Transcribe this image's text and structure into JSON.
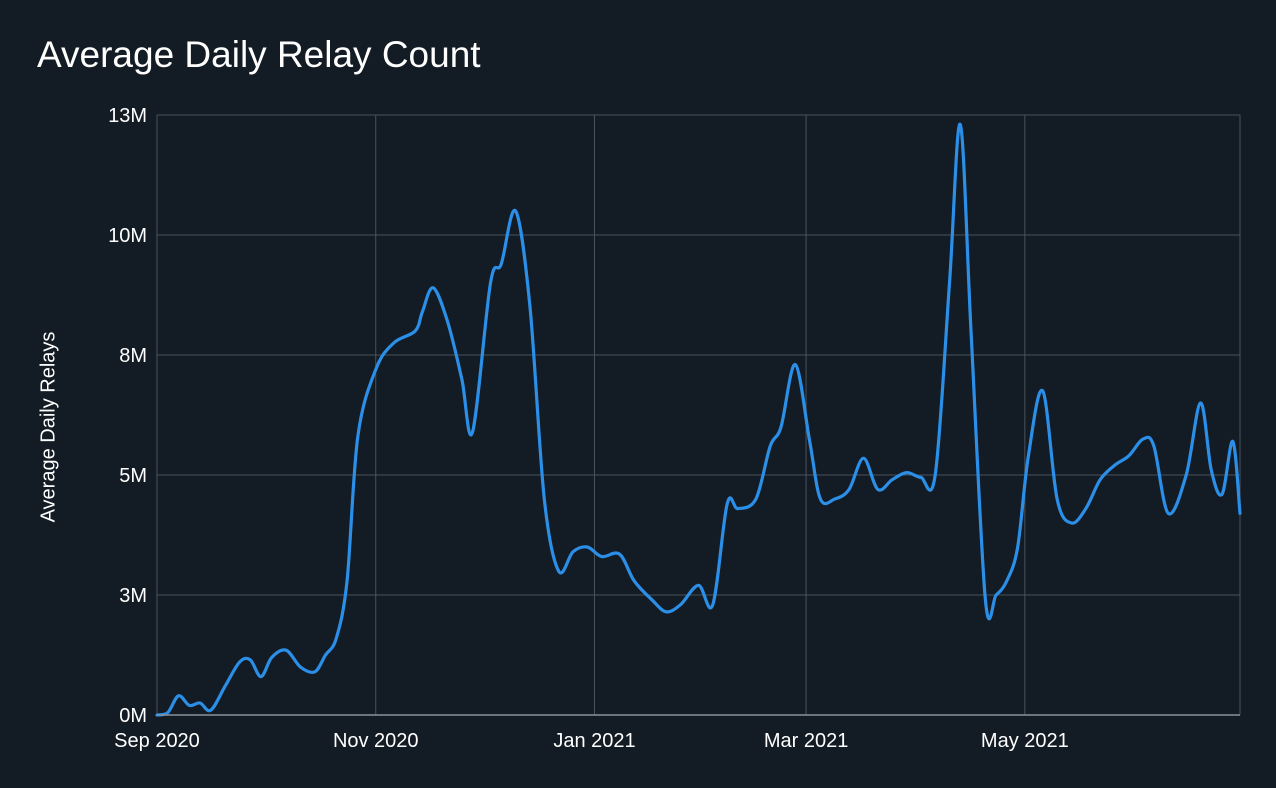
{
  "chart_data": {
    "type": "line",
    "title": "Average Daily Relay Count",
    "ylabel": "Average Daily Relays",
    "xlabel": "",
    "x_ticks": [
      "Sep 2020",
      "Nov 2020",
      "Jan 2021",
      "Mar 2021",
      "May 2021"
    ],
    "y_ticks": [
      "0M",
      "3M",
      "5M",
      "8M",
      "10M",
      "13M"
    ],
    "y_tick_values": [
      0,
      2.5,
      5,
      7.5,
      10,
      12.5
    ],
    "ylim": [
      0,
      12.5
    ],
    "xlim": [
      "2020-09-01",
      "2021-06-30"
    ],
    "grid": true,
    "line_color": "#2b8fe8",
    "series": [
      {
        "values": [
          [
            "2020-09-01",
            0.0
          ],
          [
            "2020-09-04",
            0.05
          ],
          [
            "2020-09-07",
            0.4
          ],
          [
            "2020-09-10",
            0.2
          ],
          [
            "2020-09-13",
            0.25
          ],
          [
            "2020-09-16",
            0.1
          ],
          [
            "2020-09-20",
            0.6
          ],
          [
            "2020-09-24",
            1.1
          ],
          [
            "2020-09-27",
            1.15
          ],
          [
            "2020-09-30",
            0.8
          ],
          [
            "2020-10-03",
            1.2
          ],
          [
            "2020-10-07",
            1.35
          ],
          [
            "2020-10-11",
            1.0
          ],
          [
            "2020-10-15",
            0.9
          ],
          [
            "2020-10-18",
            1.25
          ],
          [
            "2020-10-21",
            1.6
          ],
          [
            "2020-10-24",
            2.8
          ],
          [
            "2020-10-27",
            5.8
          ],
          [
            "2020-11-01",
            7.2
          ],
          [
            "2020-11-06",
            7.75
          ],
          [
            "2020-11-12",
            8.0
          ],
          [
            "2020-11-14",
            8.4
          ],
          [
            "2020-11-17",
            8.9
          ],
          [
            "2020-11-21",
            8.2
          ],
          [
            "2020-11-25",
            7.0
          ],
          [
            "2020-11-28",
            5.9
          ],
          [
            "2020-12-03",
            9.0
          ],
          [
            "2020-12-06",
            9.4
          ],
          [
            "2020-12-10",
            10.5
          ],
          [
            "2020-12-14",
            8.5
          ],
          [
            "2020-12-18",
            4.5
          ],
          [
            "2020-12-22",
            3.0
          ],
          [
            "2020-12-26",
            3.4
          ],
          [
            "2020-12-30",
            3.5
          ],
          [
            "2021-01-03",
            3.3
          ],
          [
            "2021-01-08",
            3.35
          ],
          [
            "2021-01-12",
            2.8
          ],
          [
            "2021-01-17",
            2.4
          ],
          [
            "2021-01-21",
            2.15
          ],
          [
            "2021-01-25",
            2.3
          ],
          [
            "2021-01-30",
            2.7
          ],
          [
            "2021-02-03",
            2.3
          ],
          [
            "2021-02-07",
            4.4
          ],
          [
            "2021-02-10",
            4.3
          ],
          [
            "2021-02-15",
            4.5
          ],
          [
            "2021-02-19",
            5.6
          ],
          [
            "2021-02-22",
            6.0
          ],
          [
            "2021-02-26",
            7.3
          ],
          [
            "2021-03-02",
            5.7
          ],
          [
            "2021-03-05",
            4.5
          ],
          [
            "2021-03-09",
            4.5
          ],
          [
            "2021-03-13",
            4.7
          ],
          [
            "2021-03-17",
            5.35
          ],
          [
            "2021-03-21",
            4.7
          ],
          [
            "2021-03-25",
            4.9
          ],
          [
            "2021-03-29",
            5.05
          ],
          [
            "2021-04-02",
            4.95
          ],
          [
            "2021-04-06",
            5.0
          ],
          [
            "2021-04-10",
            9.0
          ],
          [
            "2021-04-13",
            12.3
          ],
          [
            "2021-04-16",
            8.0
          ],
          [
            "2021-04-20",
            2.4
          ],
          [
            "2021-04-23",
            2.5
          ],
          [
            "2021-04-26",
            2.8
          ],
          [
            "2021-04-29",
            3.5
          ],
          [
            "2021-05-02",
            5.4
          ],
          [
            "2021-05-06",
            6.75
          ],
          [
            "2021-05-10",
            4.5
          ],
          [
            "2021-05-14",
            4.0
          ],
          [
            "2021-05-18",
            4.3
          ],
          [
            "2021-05-22",
            4.9
          ],
          [
            "2021-05-26",
            5.2
          ],
          [
            "2021-05-30",
            5.4
          ],
          [
            "2021-06-03",
            5.75
          ],
          [
            "2021-06-06",
            5.6
          ],
          [
            "2021-06-10",
            4.2
          ],
          [
            "2021-06-15",
            5.0
          ],
          [
            "2021-06-19",
            6.5
          ],
          [
            "2021-06-22",
            5.1
          ],
          [
            "2021-06-25",
            4.6
          ],
          [
            "2021-06-28",
            5.7
          ],
          [
            "2021-06-30",
            4.2
          ]
        ]
      }
    ]
  }
}
